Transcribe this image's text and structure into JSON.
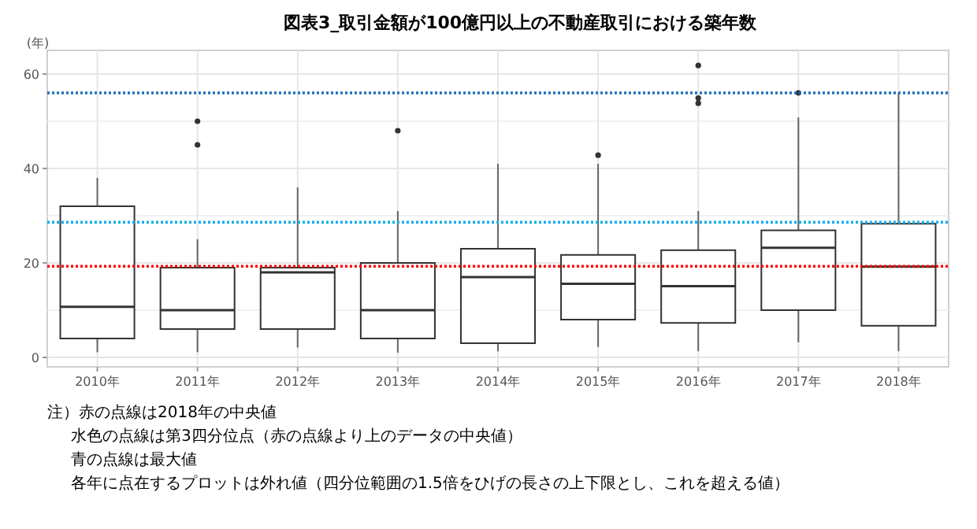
{
  "chart_data": {
    "type": "box",
    "title": "図表3_取引金額が100億円以上の不動産取引における築年数",
    "ylabel": "(年)",
    "categories": [
      "2010年",
      "2011年",
      "2012年",
      "2013年",
      "2014年",
      "2015年",
      "2016年",
      "2017年",
      "2018年"
    ],
    "boxes": [
      {
        "low": 1.1,
        "q1": 4,
        "median": 10.7,
        "q3": 32,
        "high": 38
      },
      {
        "low": 1.1,
        "q1": 6,
        "median": 10,
        "q3": 19,
        "high": 25,
        "outliers": [
          50,
          45
        ]
      },
      {
        "low": 2.1,
        "q1": 6,
        "median": 18,
        "q3": 19,
        "high": 36
      },
      {
        "low": 1,
        "q1": 4,
        "median": 10,
        "q3": 20,
        "high": 31,
        "outliers": [
          48
        ]
      },
      {
        "low": 1.3,
        "q1": 3,
        "median": 17,
        "q3": 23,
        "high": 41
      },
      {
        "low": 2.2,
        "q1": 8,
        "median": 15.6,
        "q3": 21.7,
        "high": 41,
        "outliers": [
          42.8
        ]
      },
      {
        "low": 1.3,
        "q1": 7.3,
        "median": 15.1,
        "q3": 22.7,
        "high": 31,
        "outliers": [
          61.8,
          54.9,
          53.8
        ]
      },
      {
        "low": 3.2,
        "q1": 10,
        "median": 23.2,
        "q3": 26.9,
        "high": 50.8,
        "outliers": [
          56
        ]
      },
      {
        "low": 1.3,
        "q1": 6.7,
        "median": 19.2,
        "q3": 28.3,
        "high": 56
      }
    ],
    "color": "#333333",
    "ylim": [
      -2,
      65
    ],
    "yticks": [
      0,
      20,
      40,
      60
    ],
    "grid": true,
    "ref_lines": [
      {
        "axis": "y",
        "value": 56,
        "color": "#1f6fbf",
        "line_style": "dotted"
      },
      {
        "axis": "y",
        "value": 28.6,
        "color": "#1ab0ea",
        "line_style": "dotted"
      },
      {
        "axis": "y",
        "value": 19.3,
        "color": "#ff0000",
        "line_style": "dotted"
      }
    ],
    "annotations": [
      "注）赤の点線は2018年の中央値",
      "水色の点線は第3四分位点（赤の点線より上のデータの中央値）",
      "青の点線は最大値",
      "各年に点在するプロットは外れ値（四分位範囲の1.5倍をひげの長さの上下限とし、これを超える値）"
    ]
  }
}
